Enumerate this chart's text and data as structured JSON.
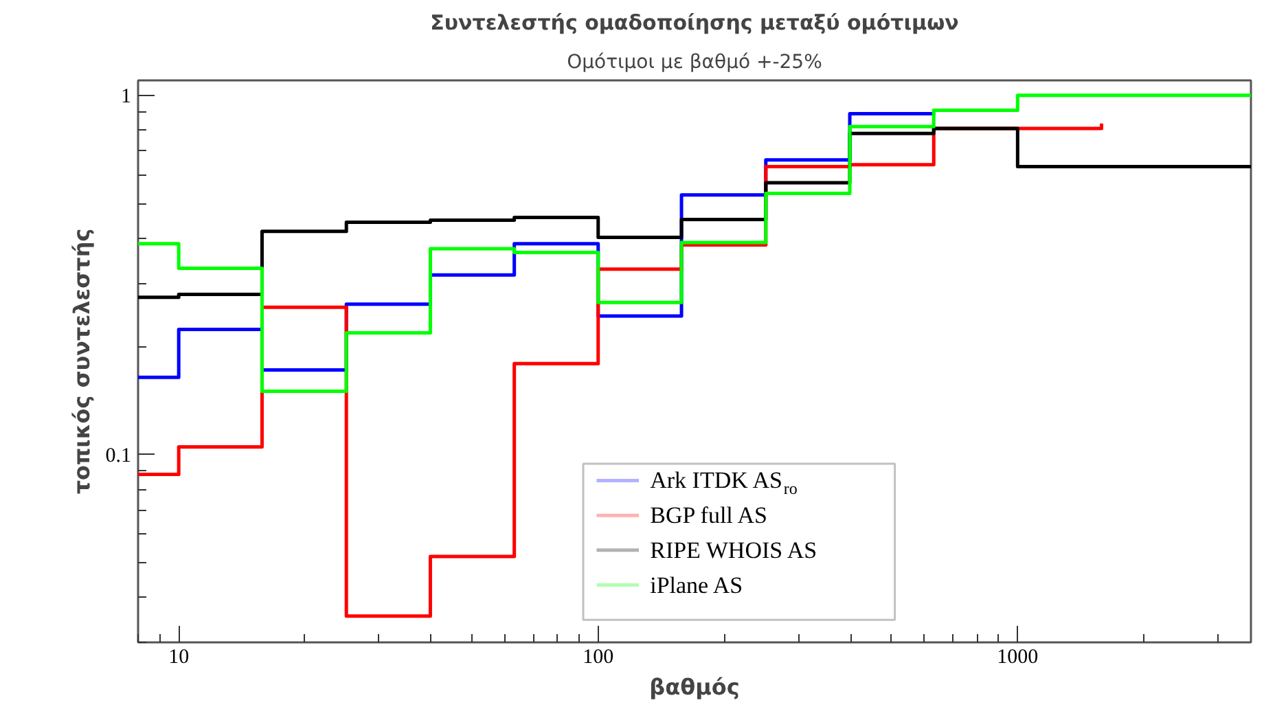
{
  "chart_data": {
    "type": "step",
    "title": "Συντελεστής ομαδοποίησης μεταξύ ομότιμων",
    "subtitle": "Ομότιμοι με βαθμό +-25%",
    "xlabel": "βαθμός",
    "ylabel": "τοπικός συντελεστής",
    "log": "xy",
    "xlim": [
      8,
      3600
    ],
    "ylim": [
      0.03,
      1.1
    ],
    "xticks": [
      10,
      100,
      1000
    ],
    "yticks": [
      0.1,
      1
    ],
    "grid": false,
    "legend": "bottom right",
    "x": [
      8,
      10,
      15.8,
      25.1,
      39.8,
      63.1,
      100,
      158,
      251,
      398,
      631,
      1000,
      1585,
      2512,
      3600
    ],
    "series": [
      {
        "name": "Ark ITDK AS$_{ro}$",
        "color": "#0000ff",
        "values": [
          0.164,
          0.223,
          0.172,
          0.262,
          0.316,
          0.386,
          0.243,
          0.528,
          0.661,
          0.888,
          0.893,
          null,
          null,
          null,
          null
        ]
      },
      {
        "name": "BGP full AS",
        "color": "#ff0000",
        "values": [
          0.088,
          0.105,
          0.257,
          0.0355,
          0.052,
          0.179,
          0.328,
          0.383,
          0.633,
          0.641,
          0.808,
          0.808,
          0.834,
          null,
          null
        ]
      },
      {
        "name": "RIPE WHOIS AS",
        "color": "#000000",
        "values": [
          0.274,
          0.279,
          0.418,
          0.443,
          0.449,
          0.457,
          0.402,
          0.451,
          0.571,
          0.783,
          0.808,
          0.633,
          0.633,
          0.633,
          0.633
        ]
      },
      {
        "name": "iPlane AS",
        "color": "#00ff00",
        "values": [
          0.386,
          0.33,
          0.15,
          0.218,
          0.374,
          0.365,
          0.265,
          0.389,
          0.533,
          0.818,
          0.908,
          1.0,
          1.0,
          1.0,
          1.0
        ]
      }
    ]
  }
}
